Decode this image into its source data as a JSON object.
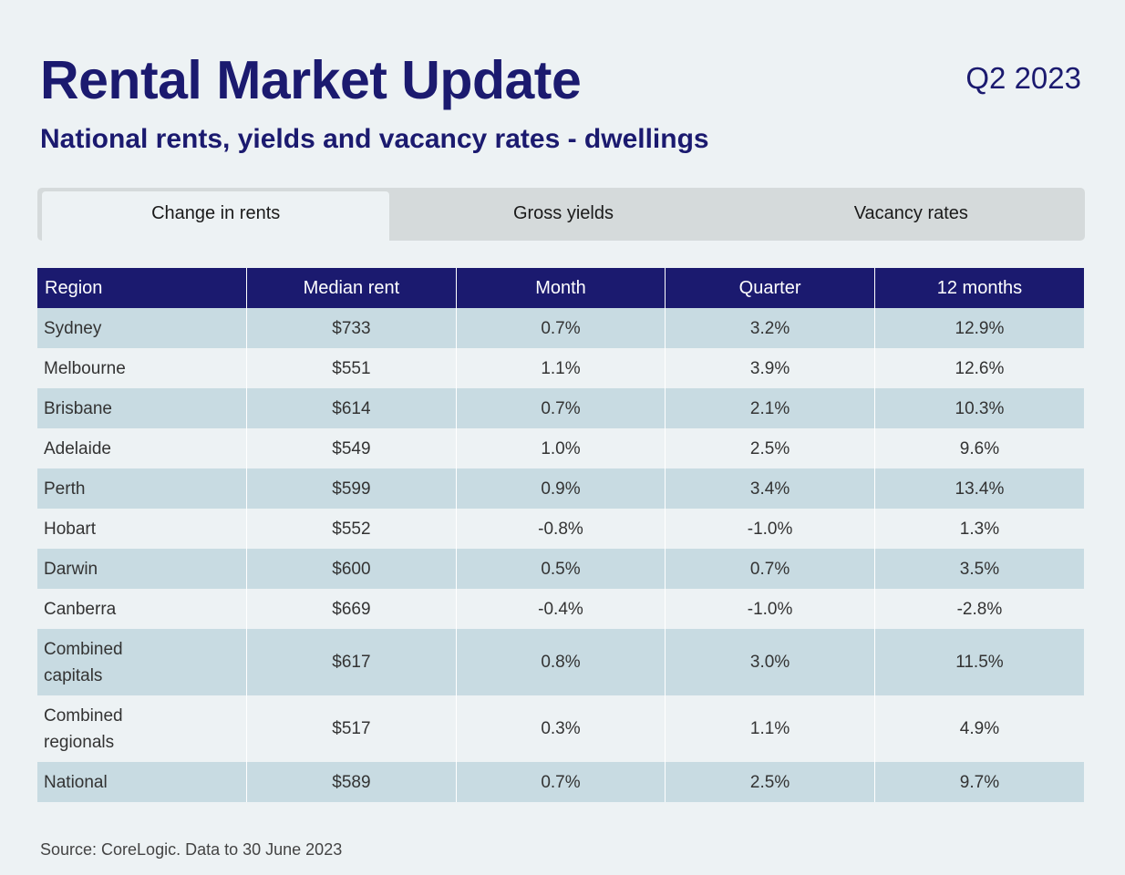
{
  "header": {
    "title": "Rental Market Update",
    "period": "Q2 2023",
    "subtitle": "National rents, yields and vacancy rates - dwellings"
  },
  "tabs": [
    {
      "label": "Change in rents",
      "active": true
    },
    {
      "label": "Gross yields",
      "active": false
    },
    {
      "label": "Vacancy rates",
      "active": false
    }
  ],
  "table": {
    "columns": [
      "Region",
      "Median rent",
      "Month",
      "Quarter",
      "12 months"
    ],
    "rows": [
      [
        "Sydney",
        "$733",
        "0.7%",
        "3.2%",
        "12.9%"
      ],
      [
        "Melbourne",
        "$551",
        "1.1%",
        "3.9%",
        "12.6%"
      ],
      [
        "Brisbane",
        "$614",
        "0.7%",
        "2.1%",
        "10.3%"
      ],
      [
        "Adelaide",
        "$549",
        "1.0%",
        "2.5%",
        "9.6%"
      ],
      [
        "Perth",
        "$599",
        "0.9%",
        "3.4%",
        "13.4%"
      ],
      [
        "Hobart",
        "$552",
        "-0.8%",
        "-1.0%",
        "1.3%"
      ],
      [
        "Darwin",
        "$600",
        "0.5%",
        "0.7%",
        "3.5%"
      ],
      [
        "Canberra",
        "$669",
        "-0.4%",
        "-1.0%",
        "-2.8%"
      ],
      [
        "Combined capitals",
        "$617",
        "0.8%",
        "3.0%",
        "11.5%"
      ],
      [
        "Combined regionals",
        "$517",
        "0.3%",
        "1.1%",
        "4.9%"
      ],
      [
        "National",
        "$589",
        "0.7%",
        "2.5%",
        "9.7%"
      ]
    ]
  },
  "footer": {
    "source": "Source: CoreLogic. Data to 30 June 2023"
  },
  "colors": {
    "navy": "#1b1a6f",
    "row_shaded": "#c8dbe2",
    "background": "#edf2f4",
    "tab_bar": "#d5dadb"
  }
}
